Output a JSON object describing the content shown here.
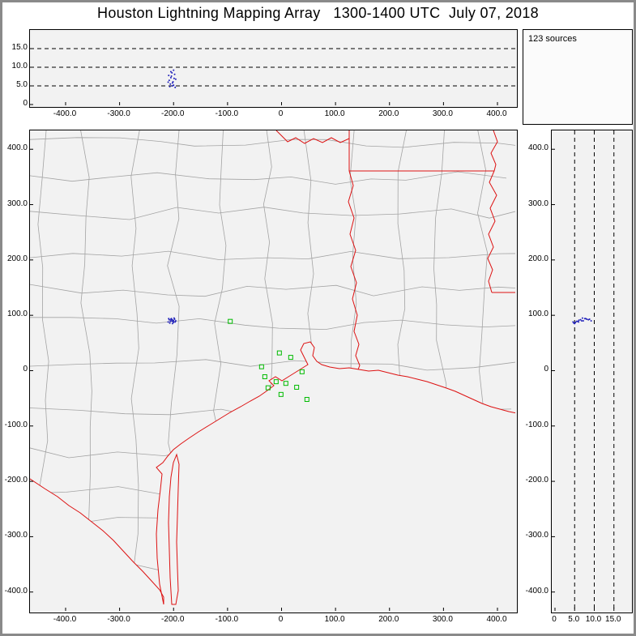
{
  "title": "Houston Lightning Mapping Array   1300-1400 UTC  July 07, 2018",
  "source_count_label": "123 sources",
  "colors": {
    "frame": "#8a8a8a",
    "panel_bg": "#f2f2f2",
    "panel_border": "#000000",
    "state_border": "#dd1111",
    "county_line": "#a3a3a3",
    "station": "#00bb00",
    "source_point": "#2222bb",
    "gridline": "#000000"
  },
  "chart_data": {
    "type": "scatter",
    "title": "Houston Lightning Mapping Array",
    "time_utc": "1300-1400 UTC",
    "date": "July 07, 2018",
    "source_count": 123,
    "panels": [
      "altitude-vs-east-west",
      "source-count",
      "plan-view-map",
      "altitude-vs-north-south"
    ],
    "legend_position": "none",
    "grid": "dashed-altitude-lines",
    "axes": {
      "east_west_km": {
        "range": [
          -466,
          436
        ],
        "ticks": [
          -400,
          -300,
          -200,
          -100,
          0,
          100,
          200,
          300,
          400
        ],
        "labels": [
          "-400.0",
          "-300.0",
          "-200.0",
          "-100.0",
          "0",
          "100.0",
          "200.0",
          "300.0",
          "400.0"
        ]
      },
      "north_south_km": {
        "range": [
          -437,
          434
        ],
        "ticks": [
          400,
          300,
          200,
          100,
          0,
          -100,
          -200,
          -300,
          -400
        ],
        "labels": [
          "400.0",
          "300.0",
          "200.0",
          "100.0",
          "0",
          "-100.0",
          "-200.0",
          "-300.0",
          "-400.0"
        ]
      },
      "altitude_km": {
        "range": [
          0,
          20
        ],
        "ticks": [
          0,
          5,
          10,
          15
        ],
        "labels": [
          "0",
          "5.0",
          "10.0",
          "15.0"
        ],
        "dashed_gridlines": [
          5,
          10,
          15
        ]
      }
    },
    "lma_stations_km": [
      [
        -95,
        89
      ],
      [
        -4,
        32
      ],
      [
        17,
        24
      ],
      [
        -37,
        7
      ],
      [
        38,
        -2
      ],
      [
        -31,
        -11
      ],
      [
        -10,
        -20
      ],
      [
        8,
        -23
      ],
      [
        -25,
        -31
      ],
      [
        28,
        -30
      ],
      [
        -1,
        -43
      ],
      [
        47,
        -52
      ]
    ],
    "lightning_sources_km": [
      [
        -208,
        92,
        6.5
      ],
      [
        -205,
        90,
        7.2
      ],
      [
        -202,
        89,
        5.8
      ],
      [
        -210,
        88,
        6.0
      ],
      [
        -198,
        93,
        8.1
      ],
      [
        -204,
        94,
        7.6
      ],
      [
        -200,
        87,
        5.2
      ],
      [
        -207,
        86,
        4.8
      ],
      [
        -196,
        90,
        6.8
      ],
      [
        -203,
        92,
        8.5
      ],
      [
        -199,
        95,
        7.0
      ],
      [
        -206,
        89,
        5.5
      ],
      [
        -201,
        91,
        6.1
      ],
      [
        -209,
        94,
        7.8
      ],
      [
        -197,
        88,
        4.6
      ],
      [
        -202,
        85,
        5.0
      ],
      [
        -205,
        93,
        8.8
      ],
      [
        -200,
        90,
        9.2
      ]
    ],
    "map_features": {
      "county_lines": "gray",
      "state_borders_and_coastline": "red",
      "station_markers": "green open squares",
      "source_markers": "small blue points"
    }
  }
}
